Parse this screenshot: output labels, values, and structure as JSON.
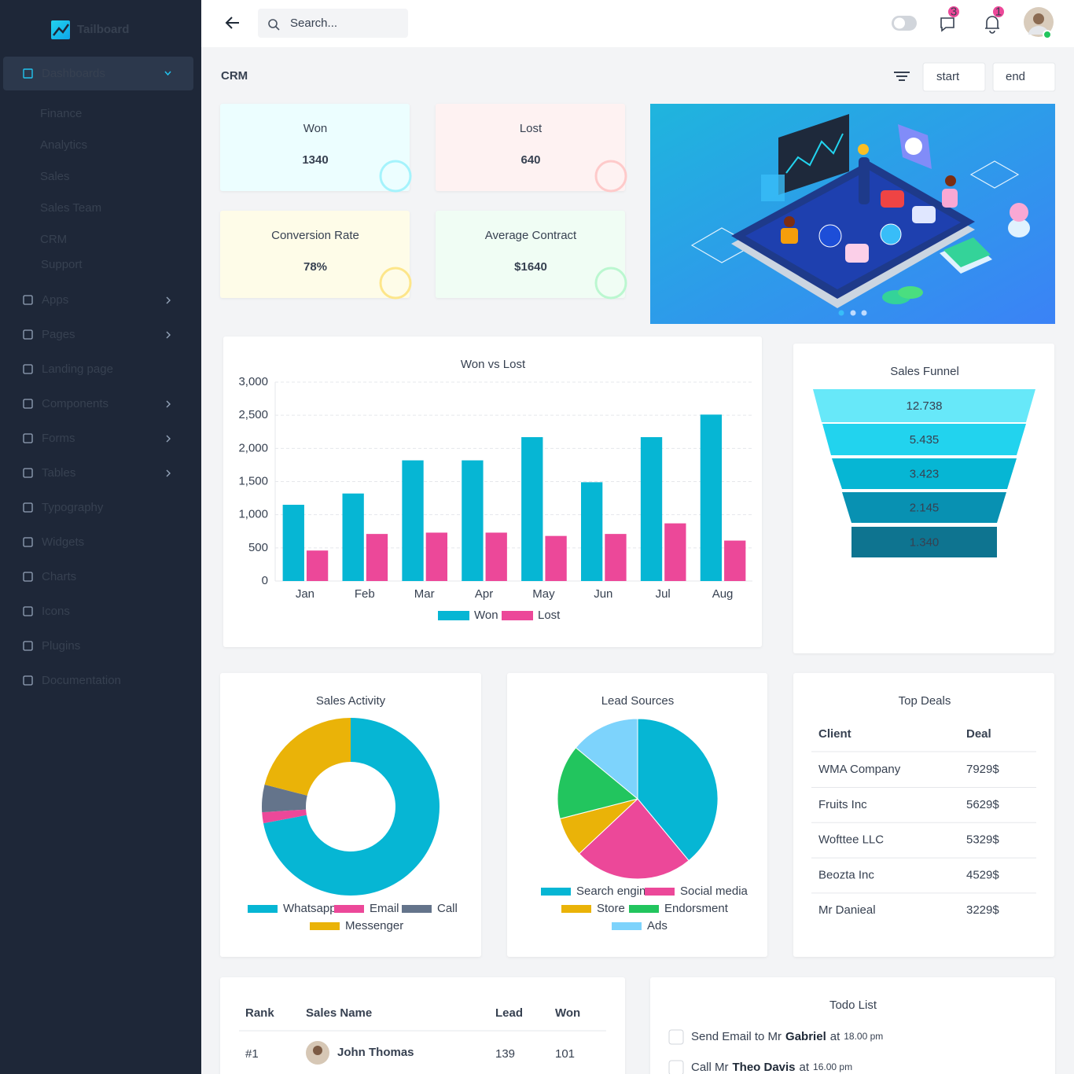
{
  "sidebar": {
    "brand": "Tailboard",
    "dashboards": "Dashboards",
    "submenu": [
      "Finance",
      "Analytics",
      "Sales",
      "Sales Team",
      "CRM",
      "Support"
    ],
    "menu": [
      "Apps",
      "Pages",
      "Landing page",
      "Components",
      "Forms",
      "Tables",
      "Typography",
      "Widgets",
      "Charts",
      "Icons",
      "Plugins",
      "Documentation"
    ]
  },
  "header": {
    "search_placeholder": "Search...",
    "messages_badge": 3,
    "notifications_badge": 1
  },
  "page": {
    "title": "CRM",
    "date_start": "start",
    "date_end": "end"
  },
  "stats": [
    {
      "label": "Won",
      "value": 1340
    },
    {
      "label": "Lost",
      "value": 640
    },
    {
      "label": "Conversion Rate",
      "value": "78%"
    },
    {
      "label": "Average Contract",
      "value": "$1640"
    }
  ],
  "won_vs_lost": {
    "type": "bar",
    "title": "Won vs Lost",
    "categories": [
      "Jan",
      "Feb",
      "Mar",
      "Apr",
      "May",
      "Jun",
      "Jul",
      "Aug"
    ],
    "series": [
      {
        "name": "Won",
        "color": "#06b6d4",
        "values": [
          1150,
          1320,
          1820,
          1820,
          2170,
          1490,
          2170,
          2510
        ]
      },
      {
        "name": "Lost",
        "color": "#ec4899",
        "values": [
          460,
          710,
          730,
          730,
          680,
          710,
          870,
          610
        ]
      }
    ],
    "ylim": [
      0,
      3000
    ],
    "yticks": [
      0,
      500,
      {
        "value": 1000,
        "label": "1,000"
      },
      {
        "value": 1500,
        "label": "1,500"
      },
      {
        "value": 2000,
        "label": "2,000"
      },
      {
        "value": 2500,
        "label": "2,500"
      },
      {
        "value": 3000,
        "label": "3,000"
      }
    ],
    "grid": true
  },
  "sales_funnel": {
    "type": "funnel",
    "title": "Sales Funnel",
    "values": [
      12738,
      5435,
      3423,
      2145,
      1340
    ],
    "value_labels": [
      "12.738",
      "5.435",
      "3.423",
      "2.145",
      "1.340"
    ],
    "colors": [
      "#67e8f9",
      "#22d3ee",
      "#06b6d4",
      "#0891b2",
      "#0e7490"
    ]
  },
  "sales_activity": {
    "type": "donut",
    "title": "Sales Activity",
    "categories": [
      "Whatsapp",
      "Email",
      "Call",
      "Messenger"
    ],
    "values": [
      72,
      2,
      5,
      21
    ],
    "colors": [
      "#06b6d4",
      "#ec4899",
      "#64748b",
      "#eab308"
    ]
  },
  "lead_sources": {
    "type": "pie",
    "title": "Lead Sources",
    "categories": [
      "Search engine",
      "Social media",
      "Store",
      "Endorsment",
      "Ads"
    ],
    "values": [
      39,
      24,
      8,
      15,
      14
    ],
    "colors": [
      "#06b6d4",
      "#ec4899",
      "#eab308",
      "#22c55e",
      "#7dd3fc"
    ]
  },
  "top_deals": {
    "title": "Top Deals",
    "columns": [
      "Client",
      "Deal"
    ],
    "rows": [
      [
        "WMA Company",
        "7929$"
      ],
      [
        "Fruits Inc",
        "5629$"
      ],
      [
        "Wofttee LLC",
        "5329$"
      ],
      [
        "Beozta Inc",
        "4529$"
      ],
      [
        "Mr Danieal",
        "3229$"
      ]
    ]
  },
  "sales_ranking": {
    "columns": [
      "Rank",
      "Sales Name",
      "Lead",
      "Won"
    ],
    "rows": [
      [
        "#1",
        "John Thomas",
        "139",
        "101"
      ]
    ]
  },
  "todo": {
    "title": "Todo List",
    "items": [
      {
        "text": "Send Email to Mr",
        "name": "Gabriel",
        "at": "at",
        "time": "18.00 pm"
      },
      {
        "text": "Call Mr",
        "name": "Theo Davis",
        "at": "at",
        "time": "16.00 pm"
      }
    ]
  }
}
